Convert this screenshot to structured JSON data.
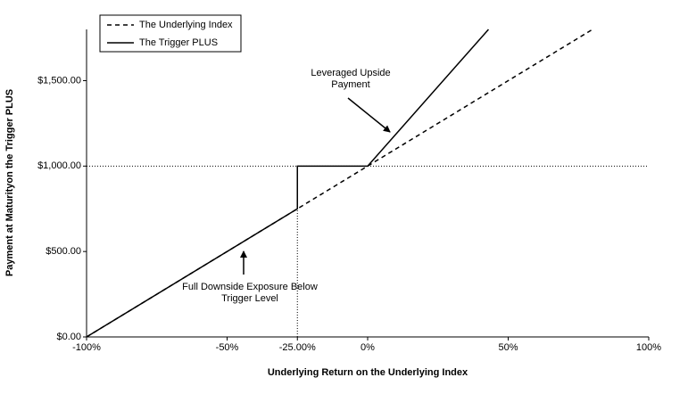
{
  "chart_data": {
    "type": "line",
    "x_label": "Underlying Return on the Underlying Index",
    "y_label": "Payment at Maturityon the Trigger PLUS",
    "series": [
      {
        "name": "The Underlying Index",
        "color": "#000000",
        "dash": true,
        "x": [
          -100,
          80
        ],
        "values": [
          0,
          1800
        ]
      },
      {
        "name": "The Trigger PLUS",
        "color": "#000000",
        "dash": false,
        "x": [
          -100,
          -25,
          -25,
          0,
          43
        ],
        "values": [
          0,
          750,
          1000,
          1000,
          1800
        ]
      }
    ],
    "xlim": [
      -100,
      100
    ],
    "xticks": [
      {
        "value": -100,
        "label": "-100%"
      },
      {
        "value": -50,
        "label": "-50%"
      },
      {
        "value": -25,
        "label": "-25.00%"
      },
      {
        "value": 0,
        "label": "0%"
      },
      {
        "value": 50,
        "label": "50%"
      },
      {
        "value": 100,
        "label": "100%"
      }
    ],
    "ylim": [
      0,
      1800
    ],
    "yticks": [
      {
        "value": 0,
        "label": "$0.00"
      },
      {
        "value": 500,
        "label": "$500.00"
      },
      {
        "value": 1000,
        "label": "$1,000.00"
      },
      {
        "value": 1500,
        "label": "$1,500.00"
      }
    ],
    "reference_y": 1000,
    "reference_x": -25,
    "legend": "top-left",
    "annotations": [
      {
        "lines": [
          "Leveraged Upside",
          "Payment"
        ]
      },
      {
        "lines": [
          "Full Downside Exposure Below",
          "Trigger Level"
        ]
      }
    ]
  }
}
